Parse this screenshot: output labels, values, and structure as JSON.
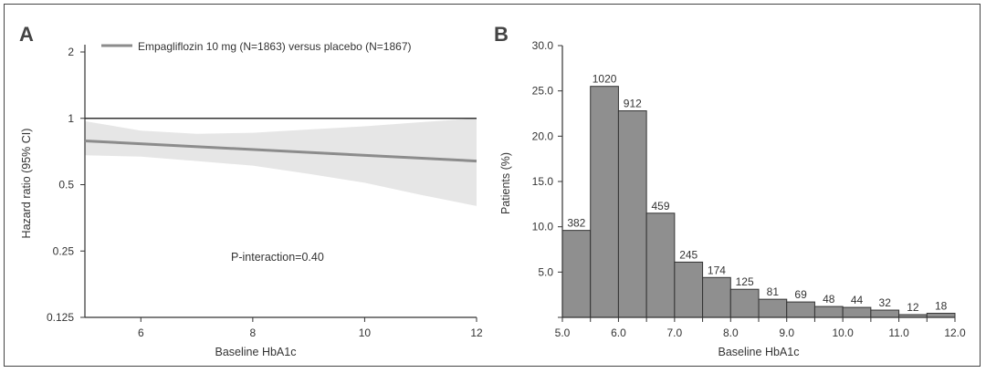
{
  "chart_data": [
    {
      "panel": "A",
      "type": "line",
      "yscale": "log2",
      "ylim": [
        0.125,
        2
      ],
      "xlim": [
        5,
        12
      ],
      "xticks": [
        6,
        8,
        10,
        12
      ],
      "ytick_labels": [
        "2",
        "1",
        "0.5",
        "0.25",
        "0.125"
      ],
      "xticks_labels": [
        "6",
        "8",
        "10",
        "12"
      ],
      "xlabel": "Baseline HbA1c",
      "ylabel": "Hazard ratio (95% CI)",
      "reference_line": 1,
      "series": [
        {
          "name": "Empagliflozin 10 mg (N=1863) versus placebo (N=1867)",
          "color": "#8c8c8c",
          "x": [
            5,
            12
          ],
          "y": [
            0.79,
            0.64
          ],
          "ci_lower": [
            0.68,
            0.4
          ],
          "ci_upper": [
            0.97,
            1.0
          ]
        }
      ],
      "annotation": "P-interaction=0.40",
      "ci_band": {
        "x": [
          5,
          6,
          7,
          8,
          9,
          10,
          11,
          12
        ],
        "lower": [
          0.68,
          0.67,
          0.64,
          0.61,
          0.56,
          0.51,
          0.45,
          0.4
        ],
        "upper": [
          0.97,
          0.88,
          0.85,
          0.86,
          0.89,
          0.92,
          0.96,
          1.0
        ]
      }
    },
    {
      "panel": "B",
      "type": "bar",
      "xlabel": "Baseline HbA1c",
      "ylabel": "Patients (%)",
      "ylim": [
        0,
        30
      ],
      "xlim": [
        5,
        12
      ],
      "yticks": [
        "0",
        "5.0",
        "10.0",
        "15.0",
        "20.0",
        "25.0",
        "30.0"
      ],
      "xticks": [
        "5.0",
        "6.0",
        "7.0",
        "8.0",
        "9.0",
        "10.0",
        "11.0",
        "12.0"
      ],
      "bar_color": "#8f8f8f",
      "bins": [
        {
          "x0": 5.0,
          "x1": 5.5,
          "pct": 9.6,
          "n": "382"
        },
        {
          "x0": 5.5,
          "x1": 6.0,
          "pct": 25.5,
          "n": "1020"
        },
        {
          "x0": 6.0,
          "x1": 6.5,
          "pct": 22.8,
          "n": "912"
        },
        {
          "x0": 6.5,
          "x1": 7.0,
          "pct": 11.5,
          "n": "459"
        },
        {
          "x0": 7.0,
          "x1": 7.5,
          "pct": 6.1,
          "n": "245"
        },
        {
          "x0": 7.5,
          "x1": 8.0,
          "pct": 4.4,
          "n": "174"
        },
        {
          "x0": 8.0,
          "x1": 8.5,
          "pct": 3.1,
          "n": "125"
        },
        {
          "x0": 8.5,
          "x1": 9.0,
          "pct": 2.0,
          "n": "81"
        },
        {
          "x0": 9.0,
          "x1": 9.5,
          "pct": 1.7,
          "n": "69"
        },
        {
          "x0": 9.5,
          "x1": 10.0,
          "pct": 1.2,
          "n": "48"
        },
        {
          "x0": 10.0,
          "x1": 10.5,
          "pct": 1.1,
          "n": "44"
        },
        {
          "x0": 10.5,
          "x1": 11.0,
          "pct": 0.8,
          "n": "32"
        },
        {
          "x0": 11.0,
          "x1": 11.5,
          "pct": 0.3,
          "n": "12"
        },
        {
          "x0": 11.5,
          "x1": 12.0,
          "pct": 0.45,
          "n": "18"
        }
      ]
    }
  ],
  "panels": {
    "a_letter": "A",
    "b_letter": "B"
  }
}
